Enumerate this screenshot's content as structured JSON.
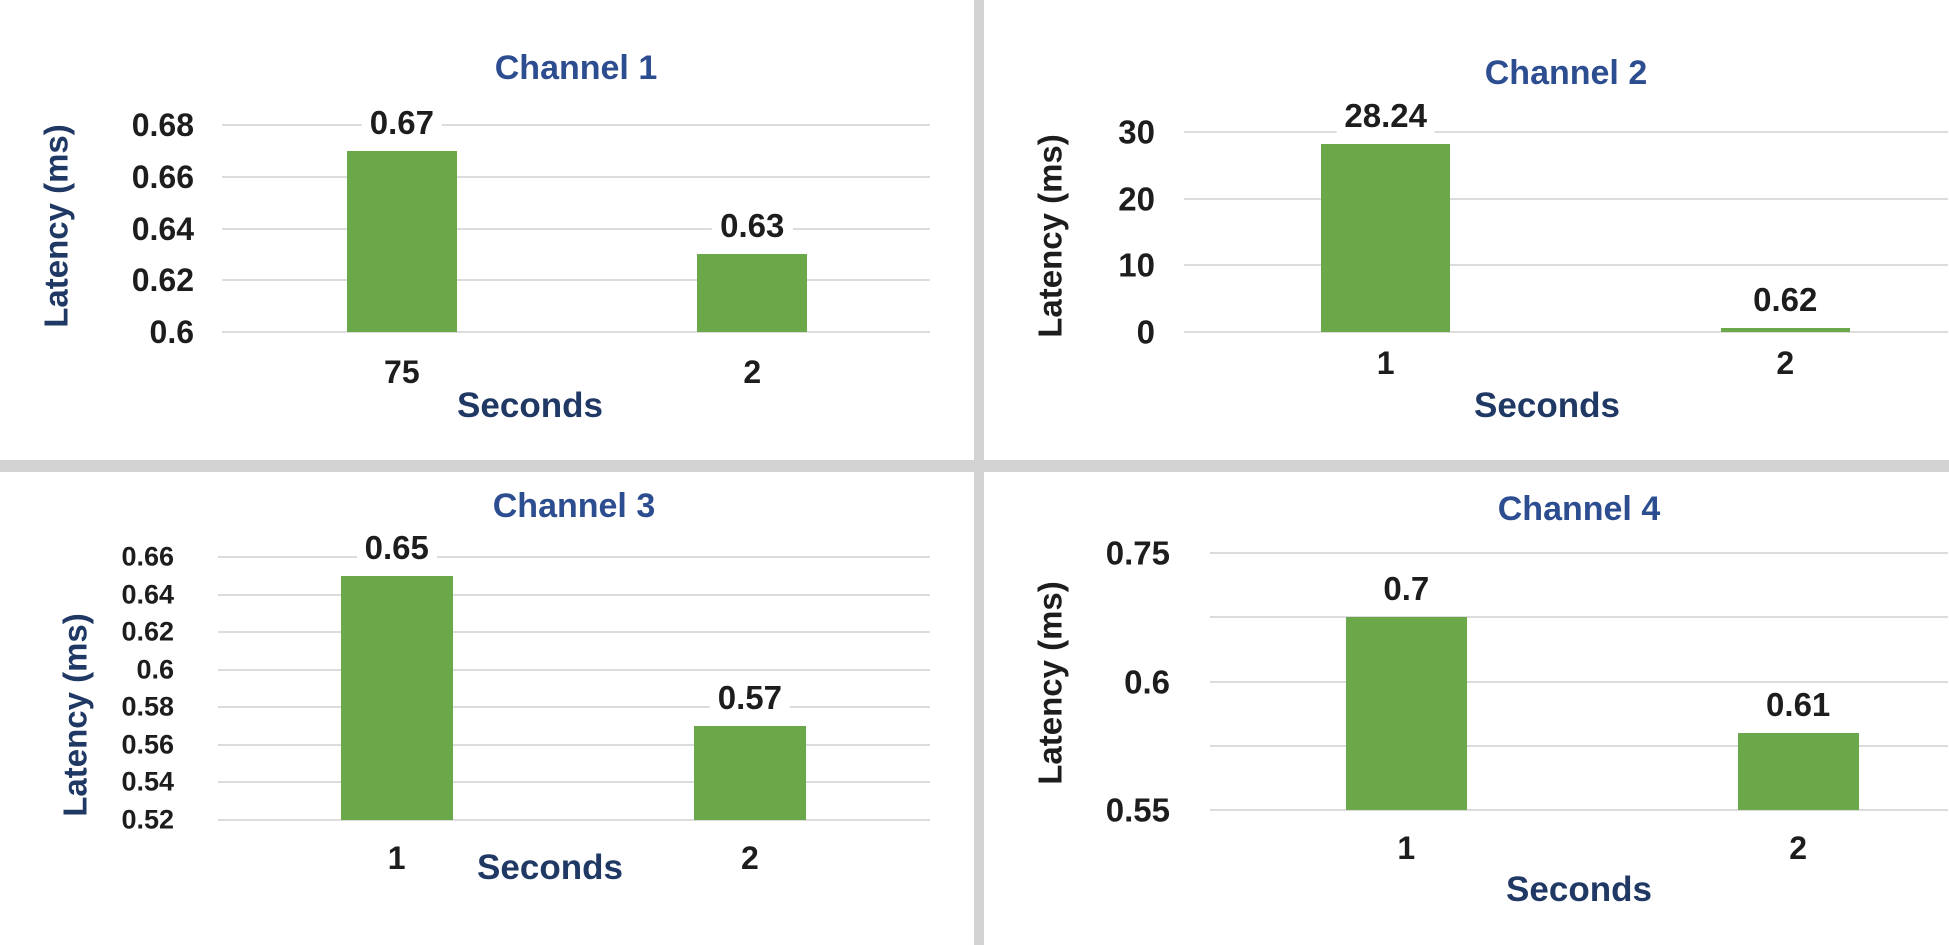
{
  "colors": {
    "bar_green": "#6aa84a",
    "title_blue": "#2c4d8f",
    "axis_navy": "#1f3864",
    "axis_black": "#1d1d1d",
    "gridline": "#dcdcdc",
    "divider": "#d2d2d2",
    "background": "#ffffff"
  },
  "chart_data": [
    {
      "type": "bar",
      "title": "Channel 1",
      "xlabel": "Seconds",
      "ylabel": "Latency (ms)",
      "ylabel_color": "#1f3864",
      "categories": [
        "75",
        "2"
      ],
      "values": [
        0.67,
        0.63
      ],
      "bar_labels": [
        "0.67",
        "0.63"
      ],
      "yticks": [
        "0.68",
        "0.66",
        "0.64",
        "0.62",
        "0.6"
      ],
      "ylim": [
        0.6,
        0.68
      ],
      "grid": true,
      "legend": false
    },
    {
      "type": "bar",
      "title": "Channel 2",
      "xlabel": "Seconds",
      "ylabel": "Latency (ms)",
      "ylabel_color": "#1d1d1d",
      "categories": [
        "1",
        "2"
      ],
      "values": [
        28.24,
        0.62
      ],
      "bar_labels": [
        "28.24",
        "0.62"
      ],
      "yticks": [
        "30",
        "20",
        "10",
        "0"
      ],
      "ylim": [
        0,
        30
      ],
      "grid": true,
      "legend": false
    },
    {
      "type": "bar",
      "title": "Channel 3",
      "xlabel": "Seconds",
      "ylabel": "Latency (ms)",
      "ylabel_color": "#1f3864",
      "categories": [
        "1",
        "2"
      ],
      "values": [
        0.65,
        0.57
      ],
      "bar_labels": [
        "0.65",
        "0.57"
      ],
      "yticks": [
        "0.66",
        "0.64",
        "0.62",
        "0.6",
        "0.58",
        "0.56",
        "0.54",
        "0.52"
      ],
      "ylim": [
        0.52,
        0.66
      ],
      "grid": true,
      "legend": false
    },
    {
      "type": "bar",
      "title": "Channel 4",
      "xlabel": "Seconds",
      "ylabel": "Latency (ms)",
      "ylabel_color": "#1d1d1d",
      "categories": [
        "1",
        "2"
      ],
      "values": [
        0.7,
        0.61
      ],
      "bar_labels": [
        "0.7",
        "0.61"
      ],
      "yticks": [
        "0.75",
        "",
        "0.6",
        "",
        "0.55"
      ],
      "ylim": [
        0.55,
        0.75
      ],
      "grid": true,
      "legend": false
    }
  ]
}
